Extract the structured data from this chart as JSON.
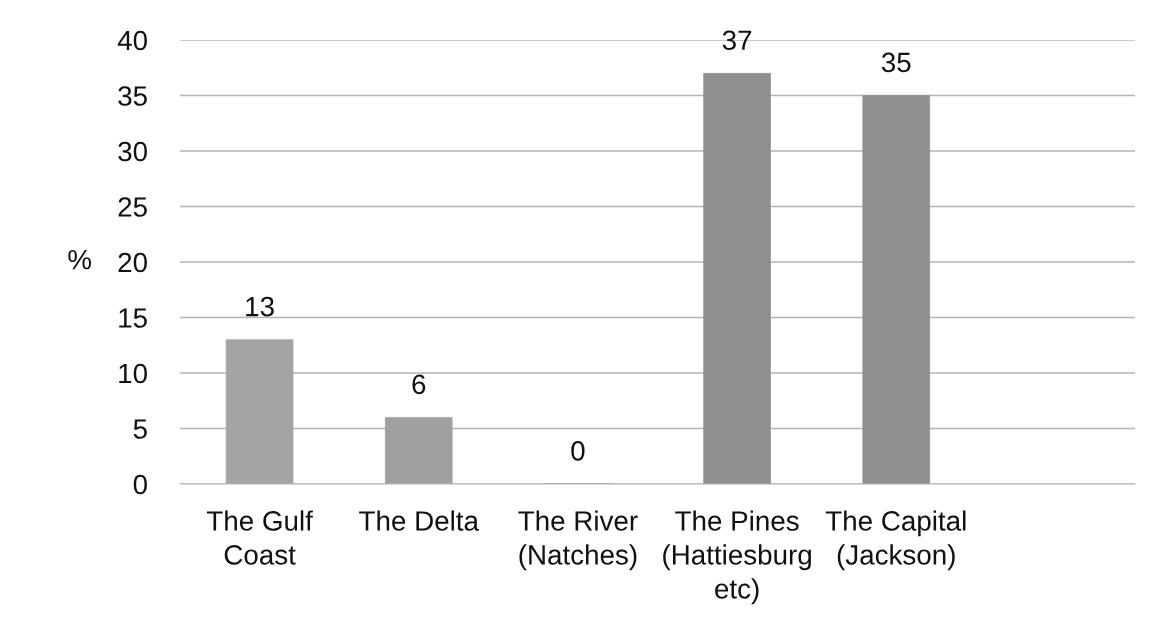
{
  "chart_data": {
    "type": "bar",
    "ylabel": "%",
    "categories": [
      "The Gulf\nCoast",
      "The Delta",
      "The River\n(Natches)",
      "The Pines\n(Hattiesburg\netc)",
      "The Capital\n(Jackson)",
      null
    ],
    "values": [
      13,
      6,
      0,
      37,
      35,
      null
    ],
    "colors": [
      "#a4a4a4",
      "#a0a0a0",
      "#999999",
      "#8f8f8f",
      "#8f8f8f",
      null
    ],
    "ylim": [
      0,
      40
    ],
    "yticks": [
      0,
      5,
      10,
      15,
      20,
      25,
      30,
      35,
      40
    ],
    "grid": "y",
    "data_labels": true
  }
}
